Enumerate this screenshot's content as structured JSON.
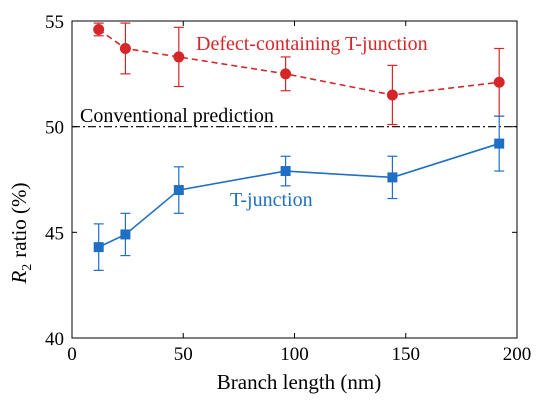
{
  "chart_data": {
    "type": "line",
    "title": "",
    "xlabel": "Branch length (nm)",
    "ylabel_main": "R",
    "ylabel_sub": "2",
    "ylabel_rest": "ratio (%)",
    "xlim": [
      0,
      200
    ],
    "ylim": [
      40,
      55
    ],
    "xticks": [
      0,
      50,
      100,
      150,
      200
    ],
    "yticks": [
      40,
      45,
      50,
      55
    ],
    "grid": false,
    "legend": "inline labels",
    "reference_line": {
      "label": "Conventional prediction",
      "y": 50,
      "style": "dash-dot",
      "color": "#000000"
    },
    "series": [
      {
        "name": "Defect-containing T-junction",
        "color": "#d62728",
        "marker": "circle",
        "line_style": "dashed",
        "x": [
          12,
          24,
          48,
          96,
          144,
          192
        ],
        "y": [
          54.6,
          53.7,
          53.3,
          52.5,
          51.5,
          52.1
        ],
        "err": [
          0.3,
          1.2,
          1.4,
          0.8,
          1.4,
          1.6
        ]
      },
      {
        "name": "T-junction",
        "color": "#1f6fc4",
        "marker": "square",
        "line_style": "solid",
        "x": [
          12,
          24,
          48,
          96,
          144,
          192
        ],
        "y": [
          44.3,
          44.9,
          47.0,
          47.9,
          47.6,
          49.2
        ],
        "err": [
          1.1,
          1.0,
          1.1,
          0.7,
          1.0,
          1.3
        ]
      }
    ]
  }
}
